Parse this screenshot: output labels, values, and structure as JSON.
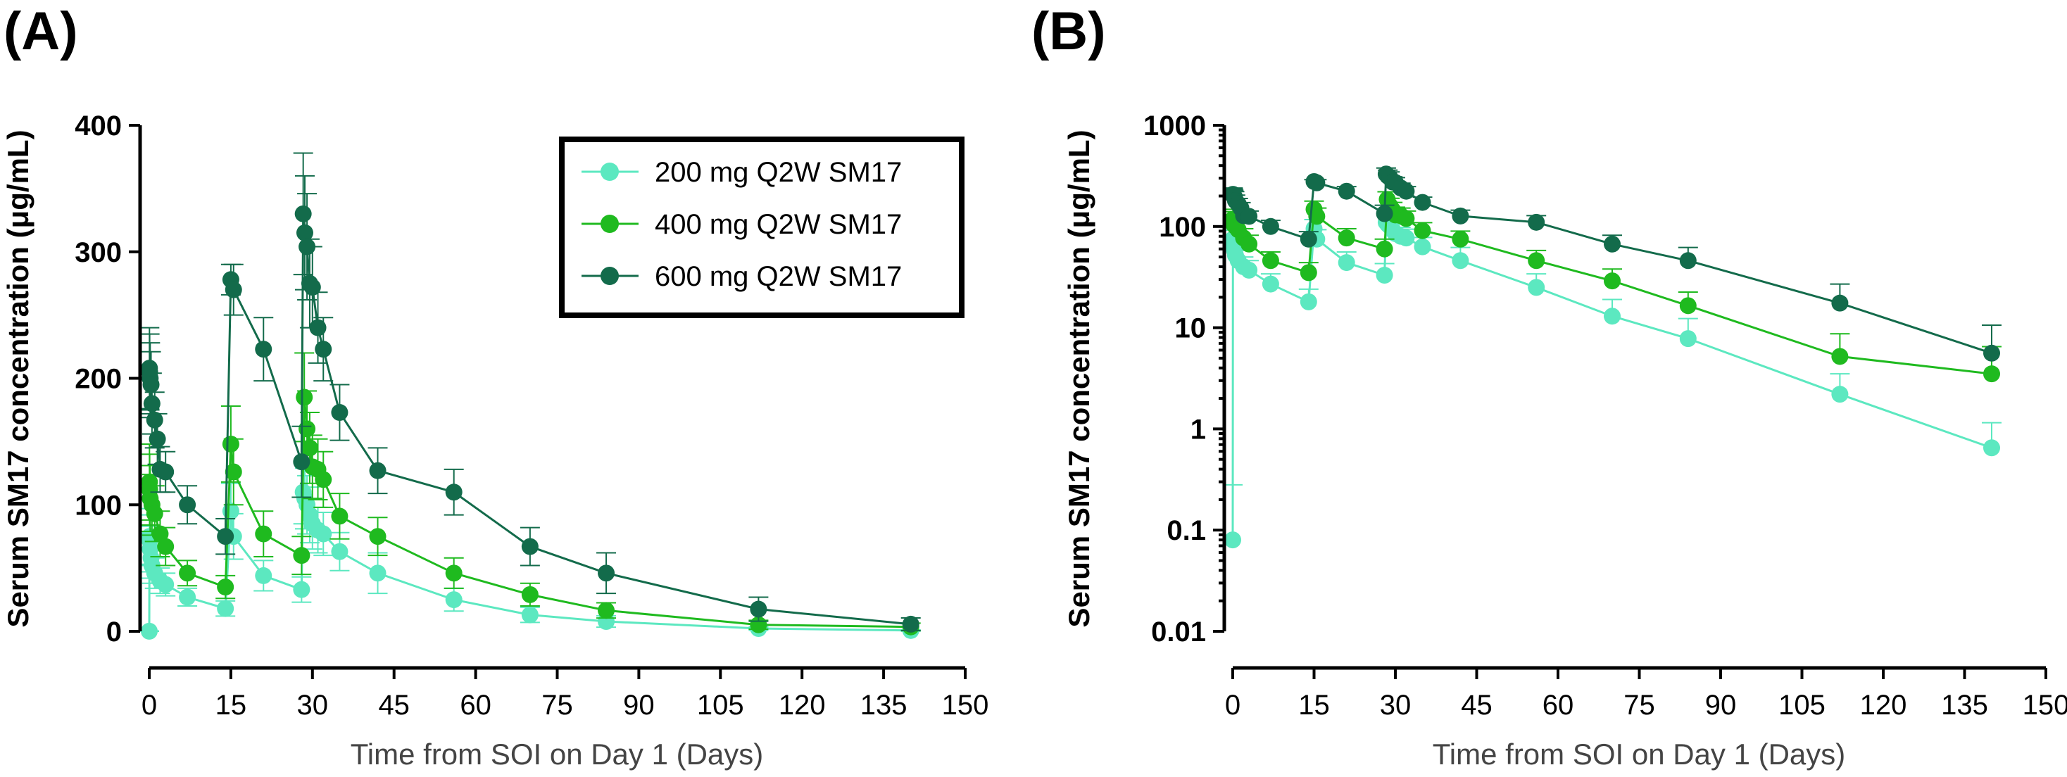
{
  "figure": {
    "panel_a_label": "(A)",
    "panel_b_label": "(B)"
  },
  "colors": {
    "200 mg Q2W SM17": "#5ce8c0",
    "400 mg Q2W SM17": "#1fba1f",
    "600 mg Q2W SM17": "#136b4b"
  },
  "chart_data": [
    {
      "panel": "A",
      "type": "line",
      "title": "",
      "xlabel": "Time from SOI on Day 1 (Days)",
      "ylabel": "Serum SM17 concentration (μg/mL)",
      "xlim": [
        0,
        150
      ],
      "ylim": [
        0,
        400
      ],
      "yscale": "linear",
      "xticks": [
        0,
        15,
        30,
        45,
        60,
        75,
        90,
        105,
        120,
        135,
        150
      ],
      "yticks": [
        0,
        100,
        200,
        300,
        400
      ],
      "ytick_labels": [
        "0",
        "100",
        "200",
        "300",
        "400"
      ],
      "legend_position": "top-right",
      "series": [
        {
          "name": "200 mg Q2W SM17",
          "x": [
            0,
            0.04,
            0.08,
            0.17,
            0.33,
            0.5,
            1,
            2,
            3,
            7,
            14,
            15,
            15.5,
            21,
            28,
            28.3,
            28.6,
            29,
            29.5,
            30,
            31,
            32,
            35,
            42,
            56,
            70,
            84,
            112,
            140
          ],
          "y": [
            0.08,
            75,
            72,
            65,
            58,
            52,
            46,
            40,
            37,
            27,
            18,
            95,
            75,
            44,
            33,
            110,
            105,
            100,
            92,
            85,
            80,
            77,
            63,
            46,
            25,
            13,
            7.8,
            2.2,
            0.65
          ],
          "err": [
            0.2,
            22,
            20,
            18,
            16,
            14,
            12,
            10,
            9,
            7,
            6,
            22,
            18,
            12,
            10,
            25,
            24,
            23,
            22,
            20,
            18,
            17,
            15,
            16,
            9,
            6,
            4.5,
            1.3,
            0.5
          ]
        },
        {
          "name": "400 mg Q2W SM17",
          "x": [
            0.04,
            0.08,
            0.17,
            0.5,
            1,
            2,
            3,
            7,
            14,
            15,
            15.5,
            21,
            28,
            28.5,
            29,
            29.5,
            30,
            31,
            32,
            35,
            42,
            56,
            70,
            84,
            112,
            140
          ],
          "y": [
            118,
            112,
            105,
            100,
            93,
            77,
            67,
            46,
            35,
            148,
            126,
            77,
            60,
            185,
            160,
            145,
            130,
            128,
            120,
            91,
            75,
            46,
            29,
            16.5,
            5.2,
            3.5
          ],
          "err": [
            30,
            28,
            26,
            24,
            22,
            18,
            15,
            10,
            9,
            30,
            26,
            18,
            15,
            35,
            30,
            28,
            25,
            24,
            22,
            18,
            15,
            12,
            9,
            6,
            3.5,
            3.0
          ]
        },
        {
          "name": "600 mg Q2W SM17",
          "x": [
            0.04,
            0.08,
            0.17,
            0.33,
            0.5,
            1,
            1.5,
            2,
            3,
            7,
            14,
            15,
            15.5,
            21,
            28,
            28.3,
            28.6,
            29,
            29.5,
            30,
            31,
            32,
            35,
            42,
            56,
            70,
            84,
            112,
            140
          ],
          "y": [
            208,
            205,
            200,
            195,
            180,
            167,
            152,
            128,
            126,
            100,
            75,
            278,
            270,
            223,
            134,
            330,
            315,
            304,
            275,
            272,
            240,
            223,
            173,
            127,
            110,
            67,
            46,
            17.5,
            5.6
          ],
          "err": [
            32,
            30,
            28,
            26,
            24,
            22,
            20,
            18,
            16,
            15,
            14,
            12,
            20,
            25,
            28,
            48,
            45,
            42,
            35,
            32,
            28,
            25,
            22,
            18,
            18,
            15,
            16,
            9.5,
            5
          ]
        }
      ]
    },
    {
      "panel": "B",
      "type": "line",
      "title": "",
      "xlabel": "Time from SOI on Day 1 (Days)",
      "ylabel": "Serum SM17 concentration (μg/mL)",
      "xlim": [
        0,
        150
      ],
      "ylim": [
        0.01,
        1000
      ],
      "yscale": "log",
      "xticks": [
        0,
        15,
        30,
        45,
        60,
        75,
        90,
        105,
        120,
        135,
        150
      ],
      "yticks": [
        0.01,
        0.1,
        1,
        10,
        100,
        1000
      ],
      "ytick_labels": [
        "0.01",
        "0.1",
        "1",
        "10",
        "100",
        "1000"
      ],
      "series": [
        {
          "name": "200 mg Q2W SM17",
          "x": [
            0,
            0.04,
            0.08,
            0.17,
            0.33,
            0.5,
            1,
            2,
            3,
            7,
            14,
            15,
            15.5,
            21,
            28,
            28.3,
            28.6,
            29,
            29.5,
            30,
            31,
            32,
            35,
            42,
            56,
            70,
            84,
            112,
            140
          ],
          "y": [
            0.08,
            75,
            72,
            65,
            58,
            52,
            46,
            40,
            37,
            27,
            18,
            95,
            75,
            44,
            33,
            110,
            105,
            100,
            92,
            85,
            80,
            77,
            63,
            46,
            25,
            13,
            7.8,
            2.2,
            0.65
          ],
          "err": [
            0.2,
            22,
            20,
            18,
            16,
            14,
            12,
            10,
            9,
            7,
            6,
            22,
            18,
            12,
            10,
            25,
            24,
            23,
            22,
            20,
            18,
            17,
            15,
            16,
            9,
            6,
            4.5,
            1.3,
            0.5
          ]
        },
        {
          "name": "400 mg Q2W SM17",
          "x": [
            0.04,
            0.08,
            0.17,
            0.5,
            1,
            2,
            3,
            7,
            14,
            15,
            15.5,
            21,
            28,
            28.5,
            29,
            29.5,
            30,
            31,
            32,
            35,
            42,
            56,
            70,
            84,
            112,
            140
          ],
          "y": [
            118,
            112,
            105,
            100,
            93,
            77,
            67,
            46,
            35,
            148,
            126,
            77,
            60,
            185,
            160,
            145,
            130,
            128,
            120,
            91,
            75,
            46,
            29,
            16.5,
            5.2,
            3.5
          ],
          "err": [
            30,
            28,
            26,
            24,
            22,
            18,
            15,
            10,
            9,
            30,
            26,
            18,
            15,
            35,
            30,
            28,
            25,
            24,
            22,
            18,
            15,
            12,
            9,
            6,
            3.5,
            3.0
          ]
        },
        {
          "name": "600 mg Q2W SM17",
          "x": [
            0.04,
            0.08,
            0.17,
            0.33,
            0.5,
            1,
            1.5,
            2,
            3,
            7,
            14,
            15,
            15.5,
            21,
            28,
            28.3,
            28.6,
            29,
            29.5,
            30,
            31,
            32,
            35,
            42,
            56,
            70,
            84,
            112,
            140
          ],
          "y": [
            208,
            205,
            200,
            195,
            180,
            167,
            152,
            128,
            126,
            100,
            75,
            278,
            270,
            223,
            134,
            330,
            315,
            304,
            275,
            272,
            240,
            223,
            173,
            127,
            110,
            67,
            46,
            17.5,
            5.6
          ],
          "err": [
            32,
            30,
            28,
            26,
            24,
            22,
            20,
            18,
            16,
            15,
            14,
            12,
            20,
            25,
            28,
            48,
            45,
            42,
            35,
            32,
            28,
            25,
            22,
            18,
            18,
            15,
            16,
            9.5,
            5
          ]
        }
      ]
    }
  ]
}
